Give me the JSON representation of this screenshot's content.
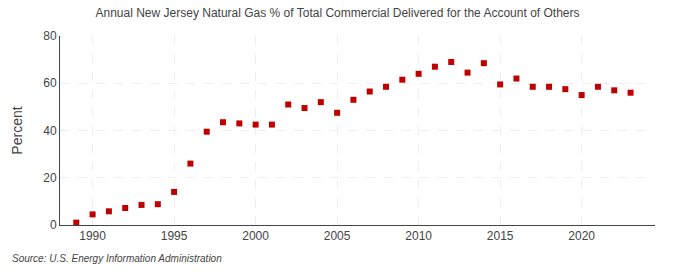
{
  "chart_data": {
    "type": "scatter",
    "title": "Annual New Jersey Natural Gas % of Total Commercial Delivered for the Account of Others",
    "ylabel": "Percent",
    "annotations": [
      "Source: U.S. Energy Information Administration"
    ],
    "x": [
      1989,
      1990,
      1991,
      1992,
      1993,
      1994,
      1995,
      1996,
      1997,
      1998,
      1999,
      2000,
      2001,
      2002,
      2003,
      2004,
      2005,
      2006,
      2007,
      2008,
      2009,
      2010,
      2011,
      2012,
      2013,
      2014,
      2015,
      2016,
      2017,
      2018,
      2019,
      2020,
      2021,
      2022,
      2023
    ],
    "values": [
      1.0,
      4.5,
      5.8,
      7.2,
      8.5,
      8.8,
      14.0,
      26.0,
      39.5,
      43.5,
      43.0,
      42.5,
      42.5,
      51.0,
      49.5,
      52.0,
      47.5,
      53.0,
      56.5,
      58.5,
      61.5,
      64.0,
      67.0,
      69.0,
      64.5,
      68.5,
      59.5,
      62.0,
      58.5,
      58.5,
      57.5,
      55.0,
      58.5,
      57.0,
      56.0
    ],
    "color": "#c00000",
    "marker": "square",
    "xlim": [
      1988.0,
      2024.5
    ],
    "xticks": [
      1990,
      1995,
      2000,
      2005,
      2010,
      2015,
      2020
    ],
    "ylim": [
      0,
      80
    ],
    "yticks": [
      0,
      20,
      40,
      60,
      80
    ],
    "grid": true
  }
}
